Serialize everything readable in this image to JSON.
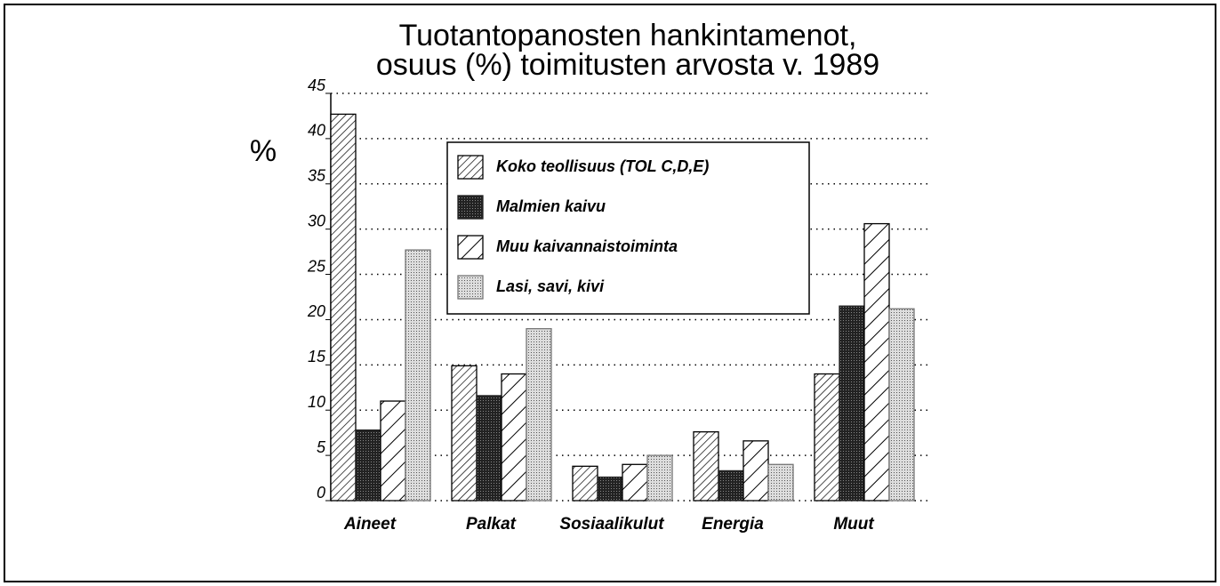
{
  "chart_data": {
    "type": "bar",
    "title": [
      "Tuotantopanosten hankintamenot,",
      "osuus (%) toimitusten arvosta v. 1989"
    ],
    "y_label": "%",
    "categories": [
      "Aineet",
      "Palkat",
      "Sosiaalikulut",
      "Energia",
      "Muut"
    ],
    "series": [
      {
        "name": "Koko teollisuus (TOL C,D,E)",
        "color": "#000000",
        "values": [
          42.7,
          14.9,
          3.8,
          7.6,
          14.0
        ]
      },
      {
        "name": "Malmien kaivu",
        "color": "#222222",
        "values": [
          7.8,
          11.6,
          2.6,
          3.3,
          21.5
        ]
      },
      {
        "name": "Muu kaivannaistoiminta",
        "color": "#000000",
        "values": [
          11.0,
          14.0,
          4.0,
          6.6,
          30.6
        ]
      },
      {
        "name": "Lasi, savi, kivi",
        "color": "#777777",
        "values": [
          27.7,
          19.0,
          5.0,
          4.0,
          21.2
        ]
      }
    ],
    "ylim": [
      0,
      45
    ],
    "yticks": [
      0,
      5,
      10,
      15,
      20,
      25,
      30,
      35,
      40,
      45
    ],
    "grid": true
  }
}
